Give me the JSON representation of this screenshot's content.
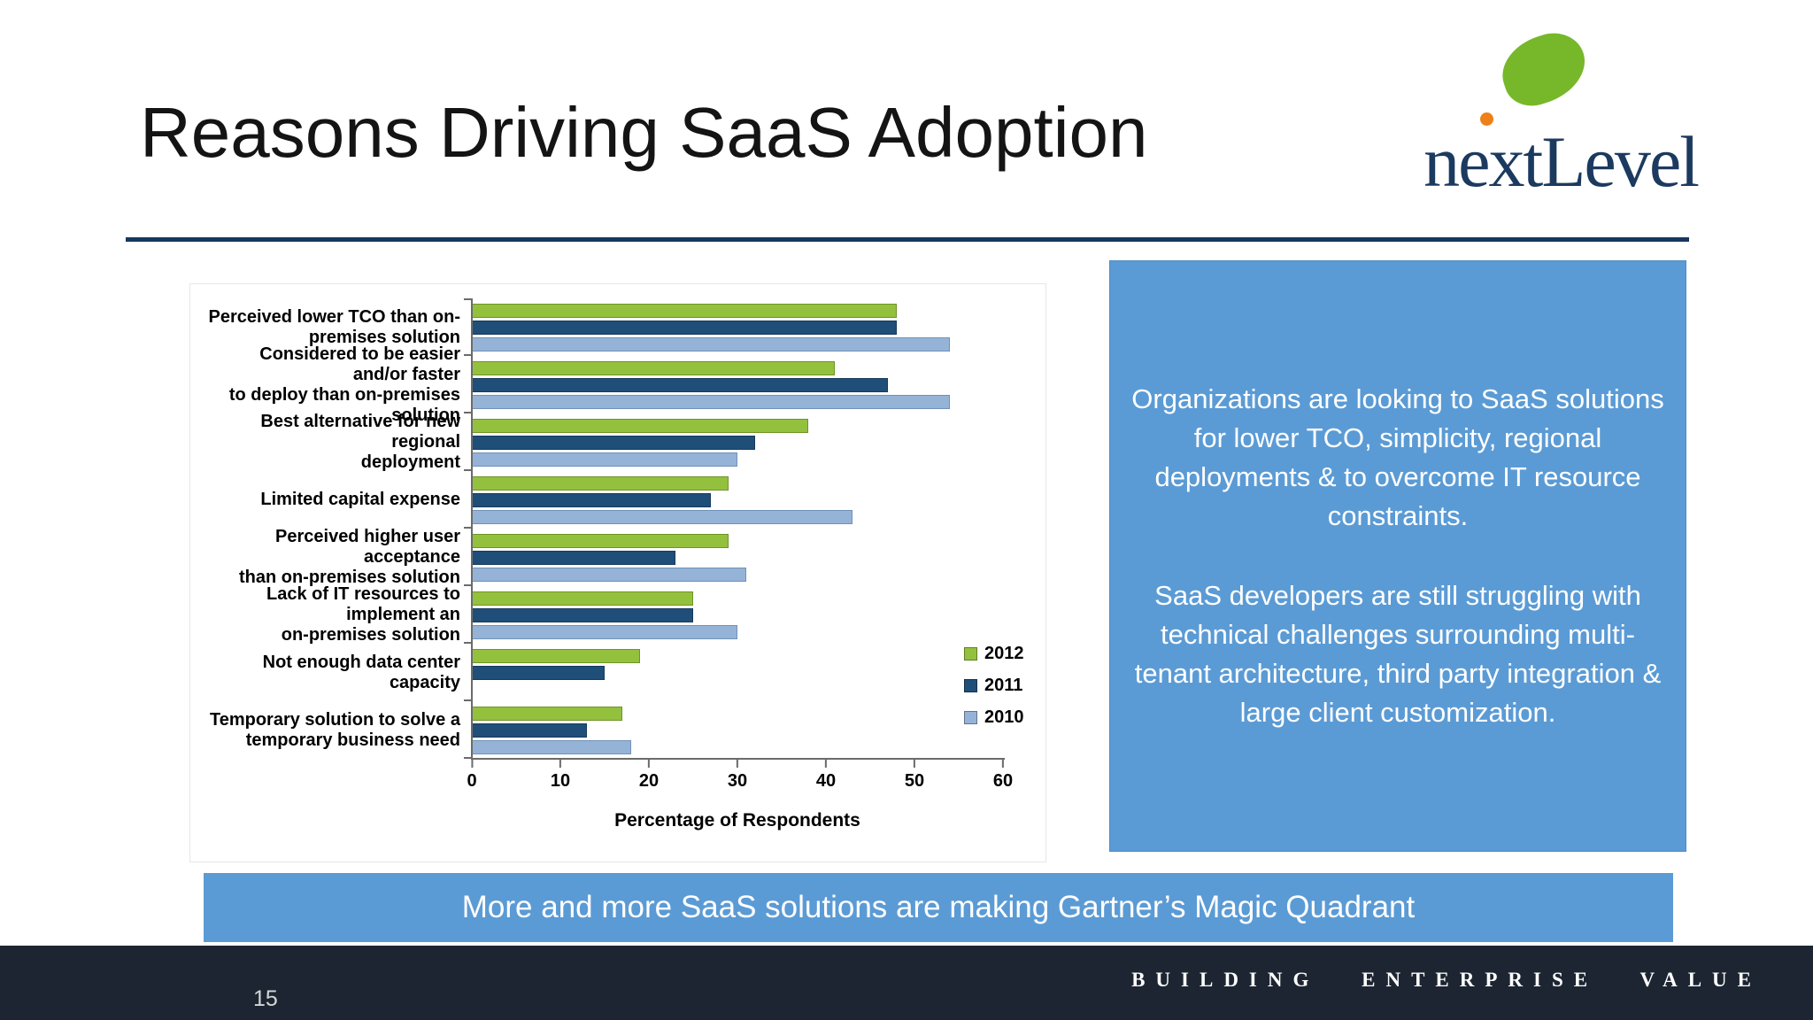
{
  "slide": {
    "title": "Reasons Driving SaaS Adoption",
    "page_number": "15",
    "footer_text": "BUILDING ENTERPRISE VALUE",
    "banner_text": "More and more SaaS solutions are making Gartner’s Magic Quadrant"
  },
  "logo": {
    "next": "next",
    "level": "Level",
    "leaf_color": "#76B82A",
    "dot_color": "#EF7F17",
    "text_color": "#1C3A5F"
  },
  "info_box": {
    "background": "#5B9BD5",
    "paragraph1": "Organizations are looking to SaaS solutions for lower TCO, simplicity, regional deployments & to overcome IT resource constraints.",
    "paragraph2": "SaaS developers are still struggling with technical challenges surrounding multi-tenant architecture,  third party integration & large client customization."
  },
  "colors": {
    "divider": "#17375E",
    "banner_blue": "#5B9BD5",
    "footer_dark": "#1D2532",
    "series_2012": "#94C13D",
    "series_2011": "#1F4E79",
    "series_2010": "#95B3D7"
  },
  "chart_data": {
    "type": "bar",
    "orientation": "horizontal",
    "title": "",
    "xlabel": "Percentage of Respondents",
    "ylabel": "",
    "xlim": [
      0,
      60
    ],
    "xticks": [
      0,
      10,
      20,
      30,
      40,
      50,
      60
    ],
    "grid": false,
    "legend_position": "right",
    "legend": [
      "2012",
      "2011",
      "2010"
    ],
    "categories": [
      "Perceived lower TCO than on-\npremises solution",
      "Considered to be easier and/or faster\nto deploy than on-premises solution",
      "Best alternative for new regional\ndeployment",
      "Limited capital expense",
      "Perceived higher user acceptance\nthan on-premises solution",
      "Lack of IT resources to implement an\non-premises solution",
      "Not enough data center capacity",
      "Temporary solution to solve a\ntemporary business need"
    ],
    "series": [
      {
        "name": "2012",
        "color": "#94C13D",
        "border": "#6f9327",
        "values": [
          48,
          41,
          38,
          29,
          29,
          25,
          19,
          17
        ]
      },
      {
        "name": "2011",
        "color": "#1F4E79",
        "border": "#163a5b",
        "values": [
          48,
          47,
          32,
          27,
          23,
          25,
          15,
          13
        ]
      },
      {
        "name": "2010",
        "color": "#95B3D7",
        "border": "#7191b8",
        "values": [
          54,
          54,
          30,
          43,
          31,
          30,
          null,
          18
        ]
      }
    ]
  }
}
